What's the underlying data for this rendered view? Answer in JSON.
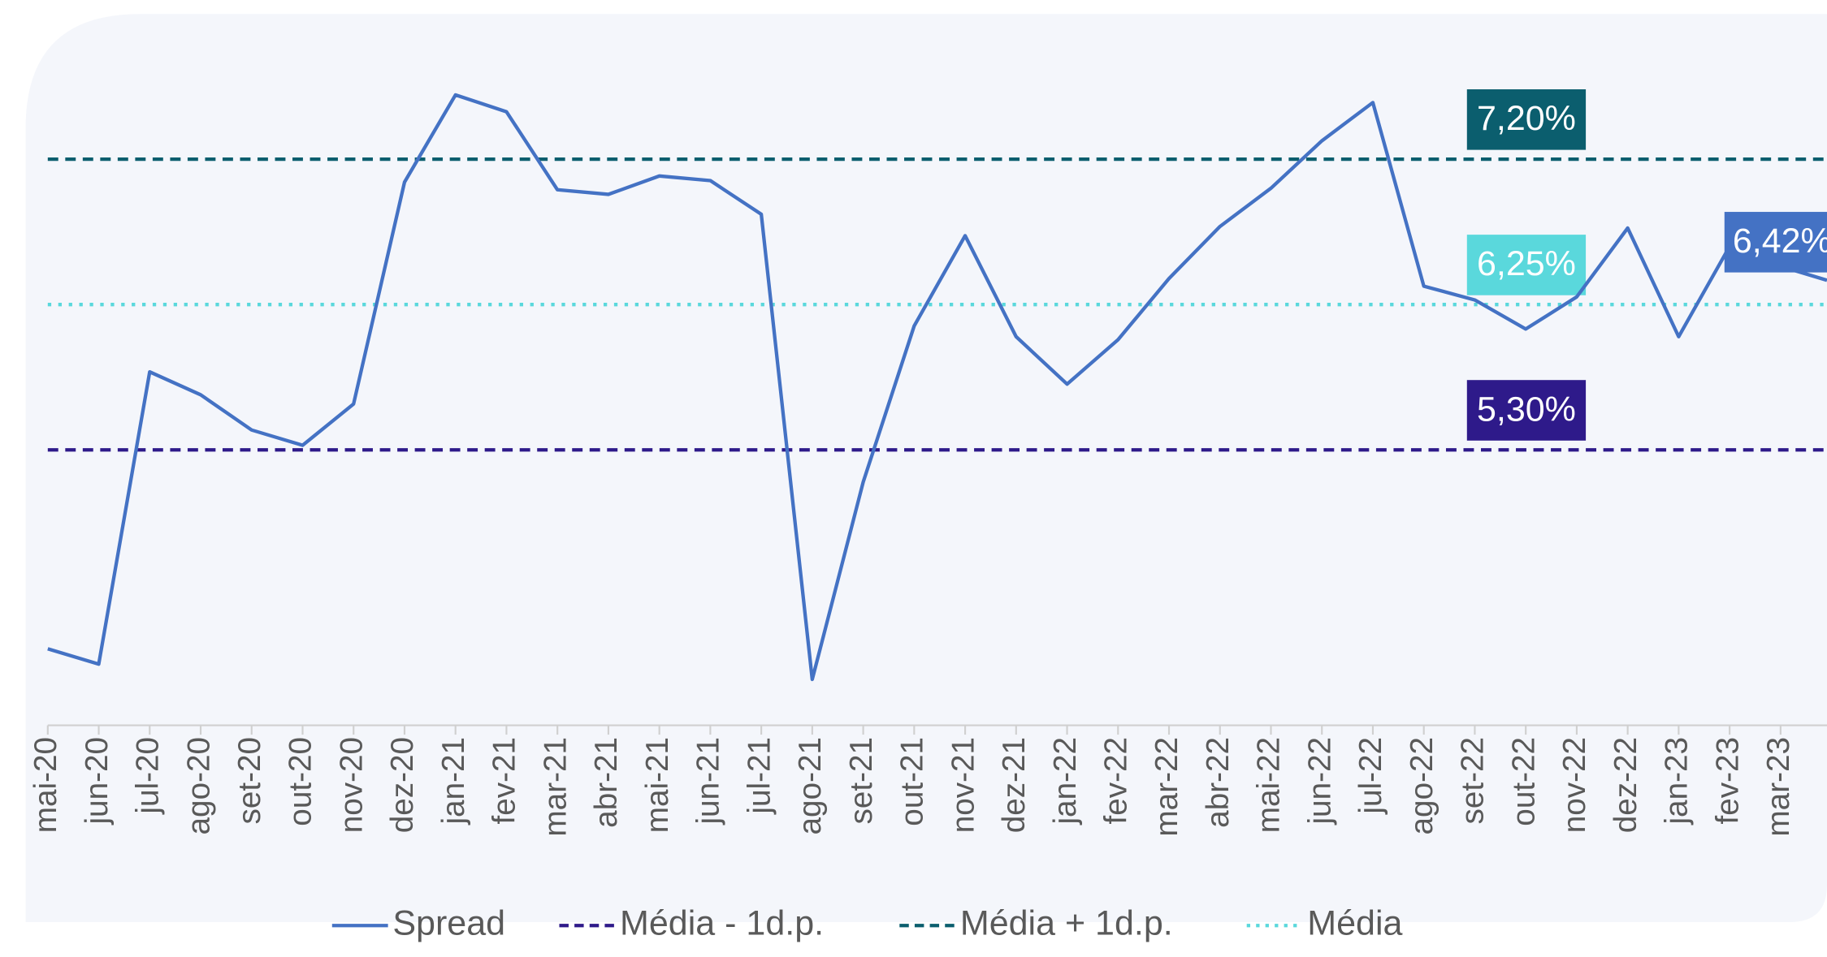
{
  "chart_data": {
    "type": "line",
    "categories": [
      "mai-20",
      "jun-20",
      "jul-20",
      "ago-20",
      "set-20",
      "out-20",
      "nov-20",
      "dez-20",
      "jan-21",
      "fev-21",
      "mar-21",
      "abr-21",
      "mai-21",
      "jun-21",
      "jul-21",
      "ago-21",
      "set-21",
      "out-21",
      "nov-21",
      "dez-21",
      "jan-22",
      "fev-22",
      "mar-22",
      "abr-22",
      "mai-22",
      "jun-22",
      "jul-22",
      "ago-22",
      "set-22",
      "out-22",
      "nov-22",
      "dez-22",
      "jan-23",
      "fev-23",
      "mar-23"
    ],
    "series": [
      {
        "name": "Spread",
        "color": "#4472c4",
        "values": [
          4.0,
          3.9,
          5.81,
          5.66,
          5.43,
          5.33,
          5.6,
          7.05,
          7.62,
          7.51,
          7.0,
          6.97,
          7.09,
          7.06,
          6.84,
          3.8,
          5.09,
          6.11,
          6.7,
          6.04,
          5.73,
          6.02,
          6.42,
          6.76,
          7.01,
          7.32,
          7.57,
          6.37,
          6.28,
          6.09,
          6.3,
          6.75,
          6.04,
          6.63,
          6.5
        ]
      }
    ],
    "reference_lines": [
      {
        "name": "Média - 1d.p.",
        "color": "#2e1a8a",
        "style": "dashed",
        "value": 5.3,
        "value_label": "5,30%"
      },
      {
        "name": "Média + 1d.p.",
        "color": "#0b5e6e",
        "style": "dashed",
        "value": 7.2,
        "value_label": "7,20%"
      },
      {
        "name": "Média",
        "color": "#5ad8dc",
        "style": "dotted",
        "value": 6.25,
        "value_label": "6,25%"
      }
    ],
    "annotations": [
      {
        "text": "6,42%",
        "color": "#4472c4"
      }
    ],
    "ylim": [
      3.5,
      8.05
    ],
    "legend": "bottom"
  }
}
